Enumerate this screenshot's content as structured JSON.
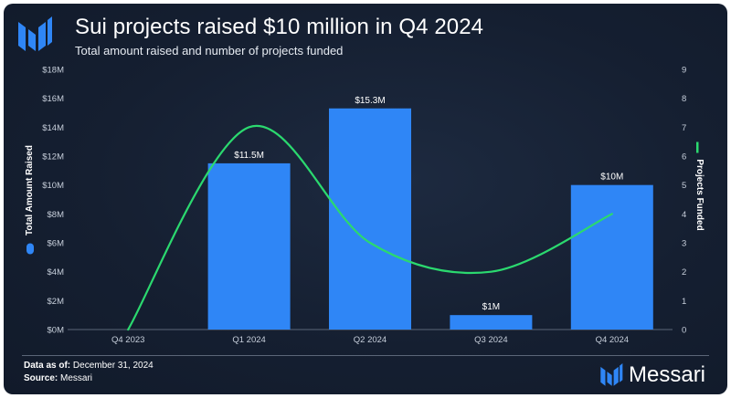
{
  "header": {
    "title": "Sui projects raised $10 million in Q4 2024",
    "subtitle": "Total amount raised and number of projects funded"
  },
  "colors": {
    "bar": "#2f86f6",
    "line": "#2bd96f",
    "text": "#ffffff",
    "axis": "#c7cfdb"
  },
  "chart_data": {
    "type": "bar",
    "categories": [
      "Q4 2023",
      "Q1 2024",
      "Q2 2024",
      "Q3 2024",
      "Q4 2024"
    ],
    "series": [
      {
        "name": "Total Amount Raised",
        "type": "bar",
        "axis": "left",
        "values": [
          0,
          11.5,
          15.3,
          1,
          10
        ],
        "labels": [
          "",
          "$11.5M",
          "$15.3M",
          "$1M",
          "$10M"
        ]
      },
      {
        "name": "Projects Funded",
        "type": "line",
        "axis": "right",
        "values": [
          0,
          7,
          3,
          2,
          4
        ]
      }
    ],
    "ylabel_left": "Total Amount Raised",
    "ylabel_right": "Projects Funded",
    "ylim_left": [
      0,
      18
    ],
    "ylim_right": [
      0,
      9
    ],
    "yticks_left": [
      "$0M",
      "$2M",
      "$4M",
      "$6M",
      "$8M",
      "$10M",
      "$12M",
      "$14M",
      "$16M",
      "$18M"
    ],
    "yticks_right": [
      "0",
      "1",
      "2",
      "3",
      "4",
      "5",
      "6",
      "7",
      "8",
      "9"
    ],
    "grid": false
  },
  "footer": {
    "data_as_of_label": "Data as of:",
    "data_as_of_value": "December 31, 2024",
    "source_label": "Source:",
    "source_value": "Messari",
    "brand": "Messari"
  }
}
